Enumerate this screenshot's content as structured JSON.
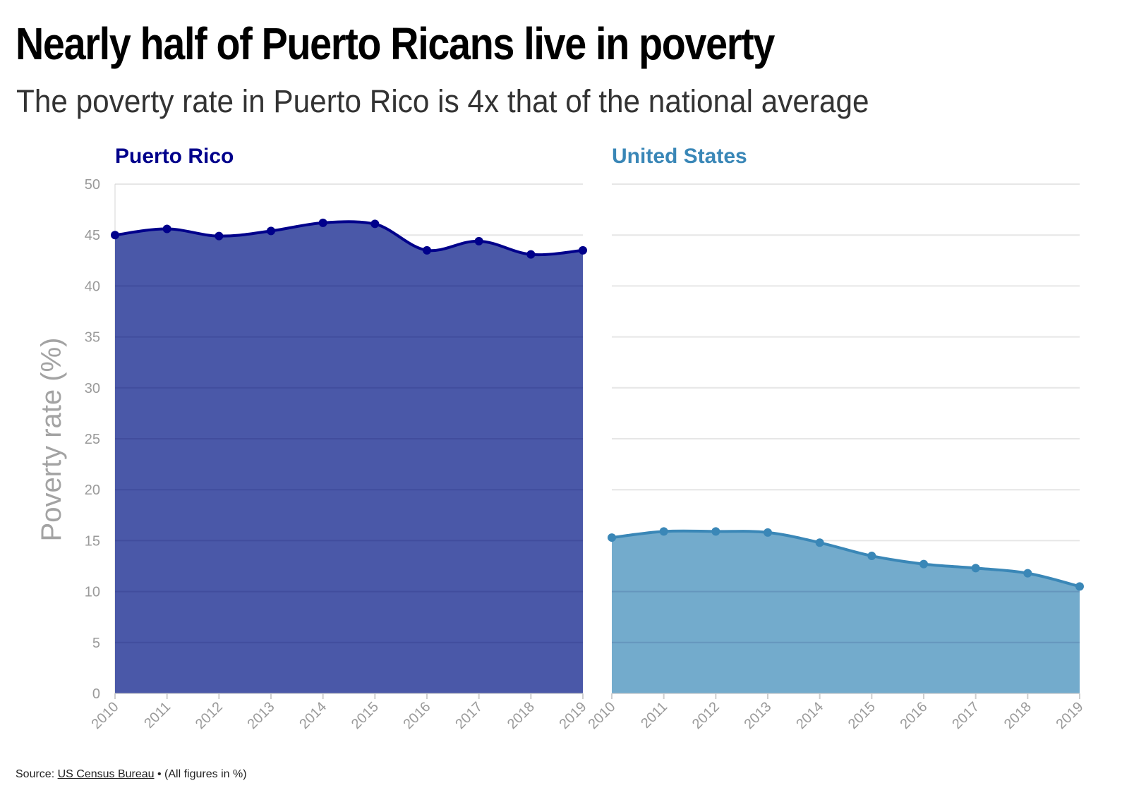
{
  "title": "Nearly half of Puerto Ricans live in poverty",
  "subtitle": "The poverty rate in Puerto Rico is 4x that of the national average",
  "footer": {
    "source_label": "Source:",
    "source_link": "US Census Bureau",
    "note": " • (All figures in %)"
  },
  "chart_data": {
    "type": "area",
    "ylabel": "Poverty rate (%)",
    "ylim": [
      0,
      50
    ],
    "yticks": [
      0,
      5,
      10,
      15,
      20,
      25,
      30,
      35,
      40,
      45,
      50
    ],
    "x": [
      "2010",
      "2011",
      "2012",
      "2013",
      "2014",
      "2015",
      "2016",
      "2017",
      "2018",
      "2019"
    ],
    "grid": true,
    "panels": [
      {
        "name": "Puerto Rico",
        "line_color": "#00008b",
        "fill_color": "#4a58a8",
        "values": [
          45.0,
          45.6,
          44.9,
          45.4,
          46.2,
          46.1,
          43.5,
          44.4,
          43.1,
          43.5
        ]
      },
      {
        "name": "United States",
        "line_color": "#3a87b7",
        "fill_color": "#73abcc",
        "values": [
          15.3,
          15.9,
          15.9,
          15.8,
          14.8,
          13.5,
          12.7,
          12.3,
          11.8,
          10.5
        ]
      }
    ]
  }
}
